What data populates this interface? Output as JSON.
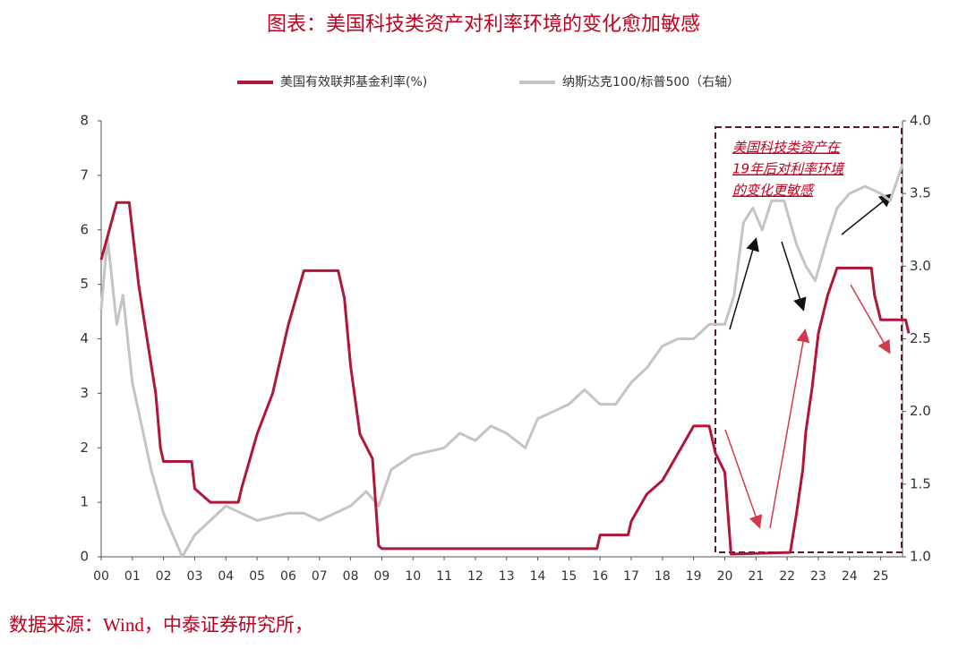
{
  "chart_data": {
    "type": "line",
    "title": "图表：美国科技类资产对利率环境的变化愈加敏感",
    "source": "数据来源：Wind，中泰证券研究所，",
    "annotation": [
      "美国科技类资产在",
      "19年后对利率环境",
      "的变化更敏感"
    ],
    "xlim": [
      0,
      25.7
    ],
    "xticks": [
      {
        "value": 0,
        "label": "00"
      },
      {
        "value": 1,
        "label": "01"
      },
      {
        "value": 2,
        "label": "02"
      },
      {
        "value": 3,
        "label": "03"
      },
      {
        "value": 4,
        "label": "04"
      },
      {
        "value": 5,
        "label": "05"
      },
      {
        "value": 6,
        "label": "06"
      },
      {
        "value": 7,
        "label": "07"
      },
      {
        "value": 8,
        "label": "08"
      },
      {
        "value": 9,
        "label": "09"
      },
      10,
      11,
      12,
      13,
      14,
      15,
      16,
      17,
      18,
      19,
      20,
      21,
      22,
      23,
      24,
      25
    ],
    "ylim": [
      0,
      8
    ],
    "yticks": [
      0,
      1,
      2,
      3,
      4,
      5,
      6,
      7,
      8
    ],
    "y2lim": [
      1,
      4
    ],
    "y2ticks": [
      {
        "value": 1,
        "label": "1.0"
      },
      1.5,
      {
        "value": 2,
        "label": "2.0"
      },
      2.5,
      {
        "value": 3,
        "label": "3.0"
      },
      3.5,
      {
        "value": 4,
        "label": "4.0"
      }
    ],
    "series": [
      {
        "name": "美国有效联邦基金利率(%)",
        "color": "#b0163a",
        "x": [
          0,
          0.5,
          0.9,
          1.0,
          1.2,
          1.5,
          1.75,
          1.9,
          2.0,
          2.9,
          3.0,
          3.5,
          4.4,
          4.5,
          5.0,
          5.5,
          6.0,
          6.5,
          7.6,
          7.8,
          8.0,
          8.3,
          8.7,
          8.9,
          9.0,
          15.9,
          16.0,
          16.9,
          17.0,
          17.5,
          18.0,
          18.5,
          19.0,
          19.5,
          19.7,
          20.0,
          20.2,
          22.1,
          22.3,
          22.5,
          22.6,
          22.8,
          23.0,
          23.3,
          23.6,
          24.7,
          24.8,
          25.0,
          25.8,
          25.9
        ],
        "values": [
          5.45,
          6.5,
          6.5,
          6.0,
          5.0,
          3.9,
          3.0,
          2.0,
          1.75,
          1.75,
          1.25,
          1.0,
          1.0,
          1.25,
          2.25,
          3.0,
          4.25,
          5.25,
          5.25,
          4.75,
          3.5,
          2.25,
          1.8,
          0.2,
          0.15,
          0.15,
          0.4,
          0.4,
          0.65,
          1.15,
          1.4,
          1.9,
          2.4,
          2.4,
          1.9,
          1.55,
          0.05,
          0.08,
          0.8,
          1.6,
          2.3,
          3.1,
          4.1,
          4.8,
          5.3,
          5.3,
          4.8,
          4.35,
          4.35,
          4.1
        ]
      },
      {
        "name": "纳斯达克100/标普500（右轴）",
        "color": "#c4c4c4",
        "axis": "y2",
        "x": [
          0,
          0.2,
          0.5,
          0.7,
          1.0,
          1.3,
          1.6,
          2.0,
          2.3,
          2.6,
          3.0,
          3.5,
          4.0,
          4.5,
          5.0,
          6.0,
          6.5,
          7.0,
          7.5,
          8.0,
          8.5,
          8.9,
          9.3,
          10.0,
          11.0,
          11.5,
          12.0,
          12.5,
          13.0,
          13.6,
          14.0,
          15.0,
          15.5,
          16.0,
          16.5,
          17.0,
          17.5,
          18.0,
          18.5,
          19.0,
          19.5,
          20.0,
          20.3,
          20.6,
          20.9,
          21.2,
          21.5,
          21.9,
          22.3,
          22.6,
          22.9,
          23.3,
          23.6,
          24.0,
          24.5,
          25.0,
          25.3,
          25.7
        ],
        "values": [
          2.7,
          3.2,
          2.6,
          2.8,
          2.2,
          1.9,
          1.6,
          1.3,
          1.15,
          1.0,
          1.15,
          1.25,
          1.35,
          1.3,
          1.25,
          1.3,
          1.3,
          1.25,
          1.3,
          1.35,
          1.45,
          1.35,
          1.6,
          1.7,
          1.75,
          1.85,
          1.8,
          1.9,
          1.85,
          1.75,
          1.95,
          2.05,
          2.15,
          2.05,
          2.05,
          2.2,
          2.3,
          2.45,
          2.5,
          2.5,
          2.6,
          2.6,
          2.8,
          3.3,
          3.4,
          3.25,
          3.45,
          3.45,
          3.15,
          3.0,
          2.9,
          3.2,
          3.4,
          3.5,
          3.55,
          3.5,
          3.45,
          3.7
        ]
      }
    ]
  }
}
